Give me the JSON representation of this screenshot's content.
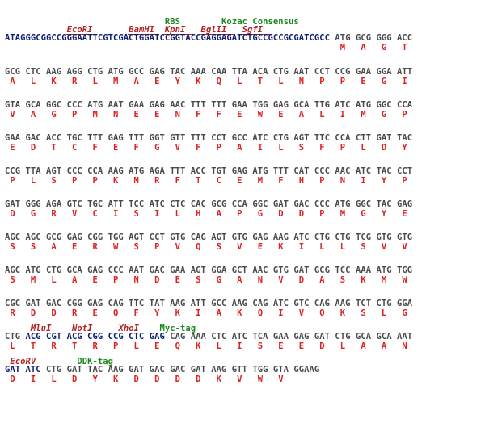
{
  "blocks": [
    {
      "annotations_top": [
        {
          "text": "RBS",
          "type": "tag",
          "col": 31
        },
        {
          "text": "Kozac Consensus",
          "type": "tag",
          "col": 42
        }
      ],
      "annotations": [
        {
          "text": "EcoRI",
          "type": "enz",
          "col": 12
        },
        {
          "text": "BamHI",
          "type": "enz",
          "col": 24
        },
        {
          "text": "KpnI",
          "type": "enz",
          "col": 31
        },
        {
          "text": "BglII",
          "type": "enz",
          "col": 38
        },
        {
          "text": "SgfI",
          "type": "enz",
          "col": 46
        }
      ],
      "segments": [
        {
          "text": "ATAGGGCGGCCGGGAATTCGTCGACTGGATCCGGTACCGAGGAGATCTGCCGCCGCGATCGCC",
          "color": "navy"
        },
        {
          "text": " ATG GCG GGG ACC",
          "color": "grey"
        }
      ],
      "aa": "                                                                 M   A   G   T"
    },
    {
      "segments": [
        {
          "text": "GCG CTC AAG AGG CTG ATG GCC GAG TAC AAA CAA TTA ACA CTG AAT CCT CCG GAA GGA ATT",
          "color": "grey"
        }
      ],
      "aa": " A   L   K   R   L   M   A   E   Y   K   Q   L   T   L   N   P   P   E   G   I"
    },
    {
      "segments": [
        {
          "text": "GTA GCA GGC CCC ATG AAT GAA GAG AAC TTT TTT GAA TGG GAG GCA TTG ATC ATG GGC CCA",
          "color": "grey"
        }
      ],
      "aa": " V   A   G   P   M   N   E   E   N   F   F   E   W   E   A   L   I   M   G   P"
    },
    {
      "segments": [
        {
          "text": "GAA GAC ACC TGC TTT GAG TTT GGT GTT TTT CCT GCC ATC CTG AGT TTC CCA CTT GAT TAC",
          "color": "grey"
        }
      ],
      "aa": " E   D   T   C   F   E   F   G   V   F   P   A   I   L   S   F   P   L   D   Y"
    },
    {
      "segments": [
        {
          "text": "CCG TTA AGT CCC CCA AAG ATG AGA TTT ACC TGT GAG ATG TTT CAT CCC AAC ATC TAC CCT",
          "color": "grey"
        }
      ],
      "aa": " P   L   S   P   P   K   M   R   F   T   C   E   M   F   H   P   N   I   Y   P"
    },
    {
      "segments": [
        {
          "text": "GAT GGG AGA GTC TGC ATT TCC ATC CTC CAC GCG CCA GGC GAT GAC CCC ATG GGC TAC GAG",
          "color": "grey"
        }
      ],
      "aa": " D   G   R   V   C   I   S   I   L   H   A   P   G   D   D   P   M   G   Y   E"
    },
    {
      "segments": [
        {
          "text": "AGC AGC GCG GAG CGG TGG AGT CCT GTG CAG AGT GTG GAG AAG ATC CTG CTG TCG GTG GTG",
          "color": "grey"
        }
      ],
      "aa": " S   S   A   E   R   W   S   P   V   Q   S   V   E   K   I   L   L   S   V   V"
    },
    {
      "segments": [
        {
          "text": "AGC ATG CTG GCA GAG CCC AAT GAC GAA AGT GGA GCT AAC GTG GAT GCG TCC AAA ATG TGG",
          "color": "grey"
        }
      ],
      "aa": " S   M   L   A   E   P   N   D   E   S   G   A   N   V   D   A   S   K   M   W"
    },
    {
      "segments": [
        {
          "text": "CGC GAT GAC CGG GAG CAG TTC TAT AAG ATT GCC AAG CAG ATC GTC CAG AAG TCT CTG GGA",
          "color": "grey"
        }
      ],
      "aa": " R   D   D   R   E   Q   F   Y   K   I   A   K   Q   I   V   Q   K   S   L   G"
    },
    {
      "annotations": [
        {
          "text": "MluI",
          "type": "enz",
          "col": 5
        },
        {
          "text": "NotI",
          "type": "enz",
          "col": 13
        },
        {
          "text": "XhoI",
          "type": "enz",
          "col": 22
        },
        {
          "text": "Myc-tag",
          "type": "tag",
          "col": 30
        }
      ],
      "segments": [
        {
          "text": "CTG ",
          "color": "grey"
        },
        {
          "text": "ACG CGT ACG CGG CCG CTC GAG",
          "color": "navy"
        },
        {
          "text": " CAG AAA CTC ATC TCA GAA GAG GAT CTG GCA GCA AAT",
          "color": "grey"
        }
      ],
      "aa": " L   T   R   T   R   P   L   E   Q   K   L   I   S   E   E   D   L   A   A   N"
    },
    {
      "annotations": [
        {
          "text": "EcoRV",
          "type": "enz",
          "col": 1
        },
        {
          "text": "DDK-tag",
          "type": "tag",
          "col": 14
        }
      ],
      "segments": [
        {
          "text": "GAT ATC",
          "color": "navy"
        },
        {
          "text": " CTG GAT TAC AAG GAT GAC GAC GAT AAG GTT TGG GTA GGAAG",
          "color": "grey"
        }
      ],
      "aa": " D   I   L   D   Y   K   D   D   D   D   K   V   W   V"
    }
  ]
}
